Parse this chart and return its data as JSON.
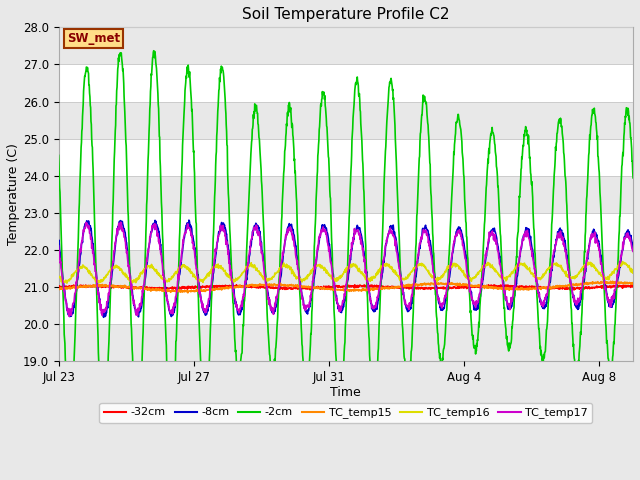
{
  "title": "Soil Temperature Profile C2",
  "xlabel": "Time",
  "ylabel": "Temperature (C)",
  "ylim": [
    19.0,
    28.0
  ],
  "yticks": [
    19.0,
    20.0,
    21.0,
    22.0,
    23.0,
    24.0,
    25.0,
    26.0,
    27.0,
    28.0
  ],
  "xtick_labels": [
    "Jul 23",
    "Jul 27",
    "Jul 31",
    "Aug 4",
    "Aug 8"
  ],
  "xtick_positions": [
    0,
    4,
    8,
    12,
    16
  ],
  "xlim": [
    0,
    17
  ],
  "fig_bg_color": "#e8e8e8",
  "plot_bg_color": "#ffffff",
  "band_color_light": "#e8e8e8",
  "band_color_dark": "#d0d0d0",
  "grid_color": "#cccccc",
  "annotation_text": "SW_met",
  "annotation_bg": "#ffdd88",
  "annotation_border": "#993300",
  "annotation_text_color": "#880000",
  "series": {
    "-32cm": {
      "color": "#ff0000",
      "linewidth": 1.2,
      "zorder": 3
    },
    "-8cm": {
      "color": "#0000cc",
      "linewidth": 1.2,
      "zorder": 4
    },
    "-2cm": {
      "color": "#00cc00",
      "linewidth": 1.2,
      "zorder": 5
    },
    "TC_temp15": {
      "color": "#ff8800",
      "linewidth": 1.2,
      "zorder": 6
    },
    "TC_temp16": {
      "color": "#dddd00",
      "linewidth": 1.2,
      "zorder": 7
    },
    "TC_temp17": {
      "color": "#cc00cc",
      "linewidth": 1.2,
      "zorder": 8
    }
  },
  "n_days": 17,
  "points_per_day": 96,
  "figsize": [
    6.4,
    4.8
  ],
  "dpi": 100
}
